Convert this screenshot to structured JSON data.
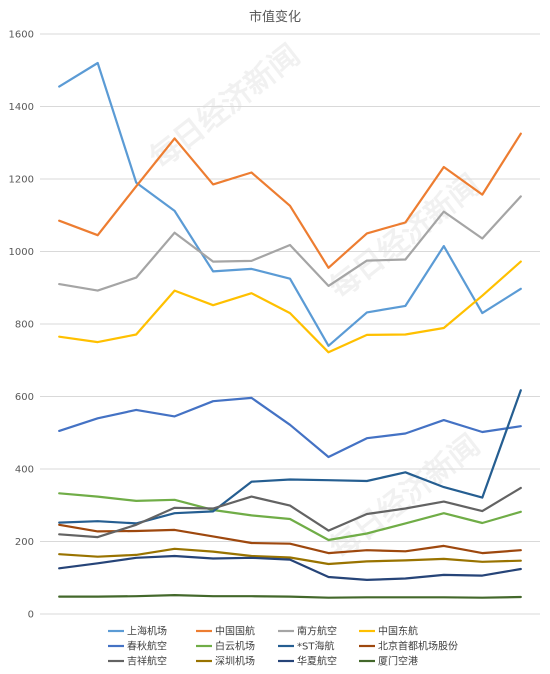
{
  "chart_data": {
    "type": "line",
    "title": "市值变化",
    "watermark": "每日经济新闻",
    "ylim": [
      0,
      1600
    ],
    "yticks": [
      0,
      200,
      400,
      600,
      800,
      1000,
      1200,
      1400,
      1600
    ],
    "grid": true,
    "legend_position": "bottom",
    "x": [
      1,
      2,
      3,
      4,
      5,
      6,
      7,
      8,
      9,
      10,
      11,
      12,
      13
    ],
    "series": [
      {
        "name": "上海机场",
        "color": "#5b9bd5",
        "values": [
          1455,
          1520,
          1190,
          1112,
          945,
          952,
          925,
          740,
          832,
          850,
          1015,
          830,
          897
        ]
      },
      {
        "name": "中国国航",
        "color": "#ed7d31",
        "values": [
          1085,
          1045,
          1180,
          1312,
          1185,
          1218,
          1126,
          955,
          1050,
          1080,
          1233,
          1157,
          1325
        ]
      },
      {
        "name": "南方航空",
        "color": "#a5a5a5",
        "values": [
          910,
          892,
          928,
          1052,
          972,
          974,
          1018,
          905,
          975,
          978,
          1110,
          1036,
          1152
        ]
      },
      {
        "name": "中国东航",
        "color": "#ffc000",
        "values": [
          765,
          750,
          771,
          892,
          852,
          885,
          830,
          722,
          770,
          771,
          789,
          878,
          972
        ]
      },
      {
        "name": "春秋航空",
        "color": "#4472c4",
        "values": [
          505,
          540,
          563,
          545,
          587,
          596,
          522,
          433,
          485,
          498,
          535,
          502,
          518
        ]
      },
      {
        "name": "白云机场",
        "color": "#70ad47",
        "values": [
          333,
          324,
          312,
          315,
          287,
          272,
          262,
          204,
          222,
          250,
          278,
          251,
          282
        ]
      },
      {
        "name": "*ST海航",
        "color": "#255e91",
        "values": [
          252,
          256,
          250,
          278,
          283,
          365,
          371,
          369,
          367,
          391,
          350,
          321,
          617
        ]
      },
      {
        "name": "北京首都机场股份",
        "color": "#9e480e",
        "values": [
          246,
          228,
          229,
          232,
          214,
          196,
          194,
          168,
          176,
          173,
          188,
          168,
          176
        ]
      },
      {
        "name": "吉祥航空",
        "color": "#636363",
        "values": [
          220,
          212,
          246,
          293,
          291,
          324,
          299,
          230,
          276,
          291,
          310,
          284,
          348
        ]
      },
      {
        "name": "深圳机场",
        "color": "#997300",
        "values": [
          165,
          158,
          163,
          180,
          172,
          160,
          156,
          138,
          145,
          148,
          152,
          144,
          147
        ]
      },
      {
        "name": "华夏航空",
        "color": "#264478",
        "values": [
          126,
          140,
          155,
          160,
          153,
          155,
          150,
          102,
          94,
          98,
          108,
          106,
          124
        ]
      },
      {
        "name": "厦门空港",
        "color": "#43682b",
        "values": [
          48,
          48,
          49,
          52,
          49,
          49,
          48,
          45,
          46,
          46,
          46,
          45,
          47
        ]
      }
    ]
  }
}
